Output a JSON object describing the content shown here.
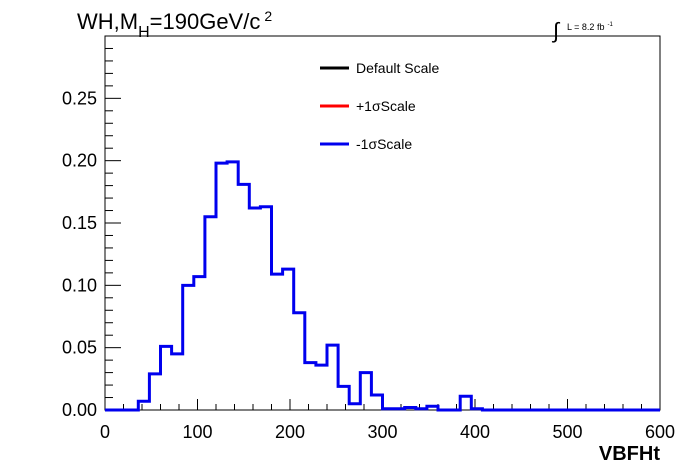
{
  "chart_data": {
    "type": "line",
    "title_main": "WH,M",
    "title_sub": "H",
    "title_rest": "=190GeV/c",
    "title_sup": "2",
    "lumi_label": "L = 8.2 fb",
    "lumi_sup": "-1",
    "integral_symbol": "∫",
    "xlabel": "VBFHt",
    "ylabel": "",
    "xlim": [
      0,
      600
    ],
    "ylim": [
      0,
      0.3
    ],
    "x_ticks": [
      "0",
      "100",
      "200",
      "300",
      "400",
      "500",
      "600"
    ],
    "y_ticks": [
      "0.00",
      "0.05",
      "0.10",
      "0.15",
      "0.20",
      "0.25"
    ],
    "bin_width": 12,
    "bin_edges_start": 0,
    "legend": [
      {
        "label": "Default Scale",
        "color": "#000000"
      },
      {
        "label": "+1σScale",
        "color": "#ff0000"
      },
      {
        "label": "-1σScale",
        "color": "#0000ee"
      }
    ],
    "series": [
      {
        "name": "-1σScale",
        "color": "#0000ee",
        "values": [
          0.0,
          0.0,
          0.0,
          0.007,
          0.029,
          0.051,
          0.045,
          0.1,
          0.107,
          0.155,
          0.198,
          0.199,
          0.181,
          0.162,
          0.163,
          0.109,
          0.113,
          0.078,
          0.038,
          0.036,
          0.052,
          0.019,
          0.005,
          0.03,
          0.012,
          0.001,
          0.001,
          0.002,
          0.001,
          0.003,
          0.0,
          0.0,
          0.011,
          0.001,
          0.0,
          0.0,
          0.0,
          0.0,
          0.0,
          0.0,
          0.0,
          0.0,
          0.0,
          0.0,
          0.0,
          0.0,
          0.0,
          0.0,
          0.0,
          0.0
        ]
      }
    ]
  }
}
